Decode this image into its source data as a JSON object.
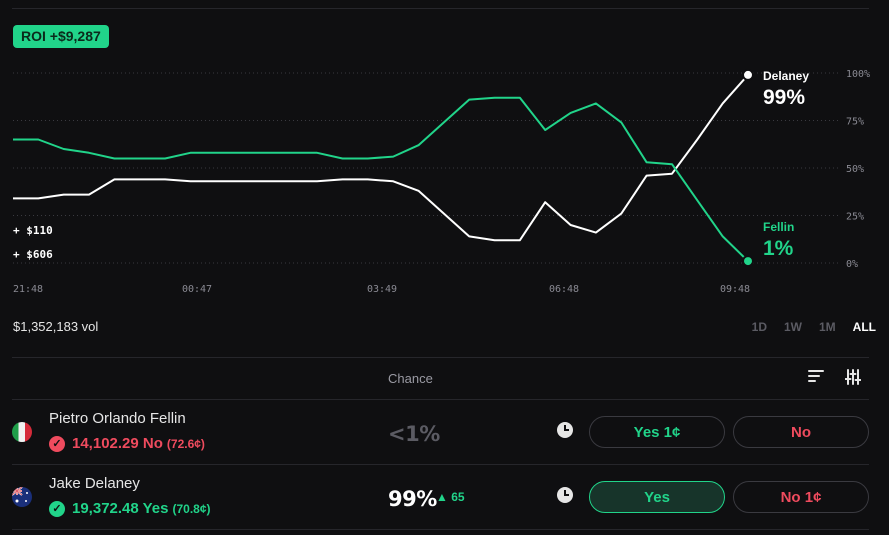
{
  "roi_badge": "ROI +$9,287",
  "chart_data": {
    "type": "line",
    "x_ticks": [
      "21:48",
      "00:47",
      "03:49",
      "06:48",
      "09:48"
    ],
    "y_ticks": [
      "100%",
      "75%",
      "50%",
      "25%",
      "0%"
    ],
    "ylim": [
      0,
      100
    ],
    "positions": [
      "+ $110",
      "+ $606"
    ],
    "series": [
      {
        "name": "Delaney",
        "color": "#ffffff",
        "end_label": "99%",
        "values": [
          34,
          34,
          36,
          36,
          44,
          44,
          44,
          43,
          43,
          43,
          43,
          43,
          43,
          44,
          44,
          43,
          38,
          26,
          14,
          12,
          12,
          32,
          20,
          16,
          26,
          46,
          47,
          65,
          84,
          99
        ]
      },
      {
        "name": "Fellin",
        "color": "#21d48a",
        "end_label": "1%",
        "values": [
          65,
          65,
          60,
          58,
          55,
          55,
          55,
          58,
          58,
          58,
          58,
          58,
          58,
          55,
          55,
          56,
          62,
          74,
          86,
          87,
          87,
          70,
          79,
          84,
          74,
          53,
          52,
          33,
          14,
          1
        ]
      }
    ]
  },
  "volume": "$1,352,183 vol",
  "time_ranges": [
    "1D",
    "1W",
    "1M",
    "ALL"
  ],
  "active_range": "ALL",
  "table": {
    "chance_header": "Chance",
    "rows": [
      {
        "name": "Pietro Orlando Fellin",
        "flag": "italy-flag",
        "holding": "14,102.29 No",
        "holding_price": "(72.6¢)",
        "holding_color": "#ef4b5e",
        "chance": "<1%",
        "chance_color": "#5b5b63",
        "delta": "",
        "yes_label": "Yes 1¢",
        "no_label": "No",
        "yes_selected": false
      },
      {
        "name": "Jake Delaney",
        "flag": "australia-flag",
        "holding": "19,372.48 Yes",
        "holding_price": "(70.8¢)",
        "holding_color": "#21d48a",
        "chance": "99%",
        "chance_color": "#ffffff",
        "delta": "▲ 65",
        "yes_label": "Yes",
        "no_label": "No 1¢",
        "yes_selected": true
      }
    ]
  }
}
